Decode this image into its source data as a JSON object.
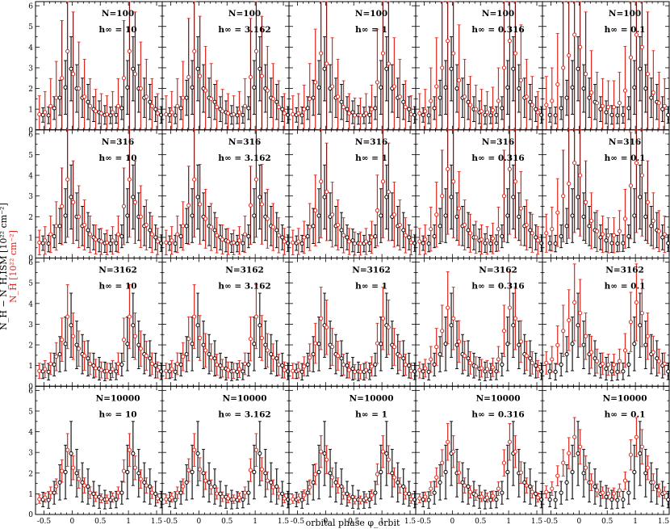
{
  "figure": {
    "ylabel": "N_H − N_H,ISM [10²² cm⁻²]",
    "ylabel_red": "N_H [10²² cm⁻²]",
    "xlabel": "orbital phase φ_orbit"
  },
  "chart_data": {
    "type": "scatter",
    "layout": "4x5 grid of panels",
    "x": [
      -0.55,
      -0.45,
      -0.35,
      -0.25,
      -0.15,
      -0.05,
      0.05,
      0.15,
      0.25,
      0.35,
      0.45,
      0.55,
      0.65,
      0.75,
      0.85,
      0.95,
      1.05,
      1.15,
      1.25,
      1.35,
      1.45,
      1.55
    ],
    "xlim": [
      -0.65,
      1.6
    ],
    "ylim": [
      0,
      6.2
    ],
    "xticks": [
      "-0.5",
      "0",
      "0.5",
      "1",
      "1.5"
    ],
    "yticks": [
      "0",
      "1",
      "2",
      "3",
      "4",
      "5",
      "6"
    ],
    "grid": false,
    "series": [
      {
        "color": "#000000",
        "values": [
          0.72,
          0.7,
          1.05,
          1.55,
          2.05,
          2.95,
          2.0,
          1.55,
          1.35,
          1.0,
          0.85,
          0.72,
          0.7,
          0.72,
          1.05,
          2.05,
          2.95,
          2.0,
          1.55,
          1.35,
          1.0,
          0.72
        ],
        "errors": [
          0.35,
          0.4,
          0.55,
          0.85,
          1.3,
          1.55,
          1.15,
          0.95,
          0.85,
          0.6,
          0.55,
          0.45,
          0.4,
          0.4,
          0.55,
          1.3,
          1.55,
          1.15,
          0.95,
          0.85,
          0.6,
          0.4
        ]
      }
    ],
    "row_labels": [
      "N=100",
      "N=316",
      "N=3162",
      "N=10000"
    ],
    "col_labels": [
      "h∞ = 10",
      "h∞ = 3.162",
      "h∞ = 1",
      "h∞ = 0.316",
      "h∞ = 0.1"
    ],
    "panels": [
      {
        "N": "N=100",
        "h": "h∞ = 10"
      },
      {
        "N": "N=100",
        "h": "h∞ = 3.162"
      },
      {
        "N": "N=100",
        "h": "h∞ = 1"
      },
      {
        "N": "N=100",
        "h": "h∞ = 0.316"
      },
      {
        "N": "N=100",
        "h": "h∞ = 0.1"
      },
      {
        "N": "N=316",
        "h": "h∞ = 10"
      },
      {
        "N": "N=316",
        "h": "h∞ = 3.162"
      },
      {
        "N": "N=316",
        "h": "h∞ = 1"
      },
      {
        "N": "N=316",
        "h": "h∞ = 0.316"
      },
      {
        "N": "N=316",
        "h": "h∞ = 0.1"
      },
      {
        "N": "N=3162",
        "h": "h∞ = 10"
      },
      {
        "N": "N=3162",
        "h": "h∞ = 3.162"
      },
      {
        "N": "N=3162",
        "h": "h∞ = 1"
      },
      {
        "N": "N=3162",
        "h": "h∞ = 0.316"
      },
      {
        "N": "N=3162",
        "h": "h∞ = 0.1"
      },
      {
        "N": "N=10000",
        "h": "h∞ = 10"
      },
      {
        "N": "N=10000",
        "h": "h∞ = 3.162"
      },
      {
        "N": "N=10000",
        "h": "h∞ = 1"
      },
      {
        "N": "N=10000",
        "h": "h∞ = 0.316"
      },
      {
        "N": "N=10000",
        "h": "h∞ = 0.1"
      }
    ],
    "red_series_shape": [
      0.75,
      0.85,
      1.15,
      1.55,
      2.5,
      3.8,
      2.7,
      2.0,
      1.6,
      1.15,
      0.9,
      0.8,
      0.75,
      0.85,
      1.15,
      2.5,
      3.8,
      2.7,
      2.0,
      1.6,
      1.15,
      0.8
    ],
    "red_gain_by_col": [
      1.0,
      1.0,
      0.97,
      1.2,
      1.15
    ],
    "red_error_by_row": [
      2.4,
      1.6,
      1.0,
      0.55
    ],
    "red_colshape": [
      [
        0.75,
        0.85,
        1.15,
        1.55,
        2.5,
        3.8,
        2.7,
        2.0,
        1.6,
        1.15,
        0.9,
        0.8,
        0.75,
        0.85,
        1.15,
        2.5,
        3.8,
        2.7,
        2.0,
        1.6,
        1.15,
        0.8
      ],
      [
        0.75,
        0.85,
        1.15,
        1.55,
        2.55,
        3.8,
        2.6,
        1.9,
        1.5,
        1.1,
        0.9,
        0.8,
        0.75,
        0.85,
        1.15,
        2.55,
        3.8,
        2.6,
        1.9,
        1.5,
        1.1,
        0.8
      ],
      [
        0.75,
        0.8,
        1.0,
        1.5,
        2.3,
        3.7,
        3.2,
        2.1,
        1.6,
        1.1,
        0.8,
        0.7,
        0.7,
        0.8,
        1.0,
        2.3,
        3.7,
        3.2,
        2.1,
        1.6,
        1.1,
        0.75
      ],
      [
        0.8,
        0.9,
        1.4,
        2.1,
        3.0,
        4.3,
        3.7,
        2.4,
        1.6,
        1.2,
        1.0,
        0.9,
        0.85,
        0.95,
        1.4,
        3.0,
        4.3,
        3.7,
        2.4,
        1.6,
        1.2,
        0.85
      ],
      [
        1.2,
        1.4,
        2.2,
        3.0,
        3.6,
        4.6,
        4.0,
        2.7,
        1.8,
        1.3,
        1.15,
        1.1,
        1.1,
        1.3,
        1.9,
        3.5,
        4.6,
        4.0,
        2.7,
        1.8,
        1.3,
        1.15
      ]
    ],
    "red_row_scale": [
      1.0,
      1.0,
      0.86,
      0.78
    ]
  }
}
